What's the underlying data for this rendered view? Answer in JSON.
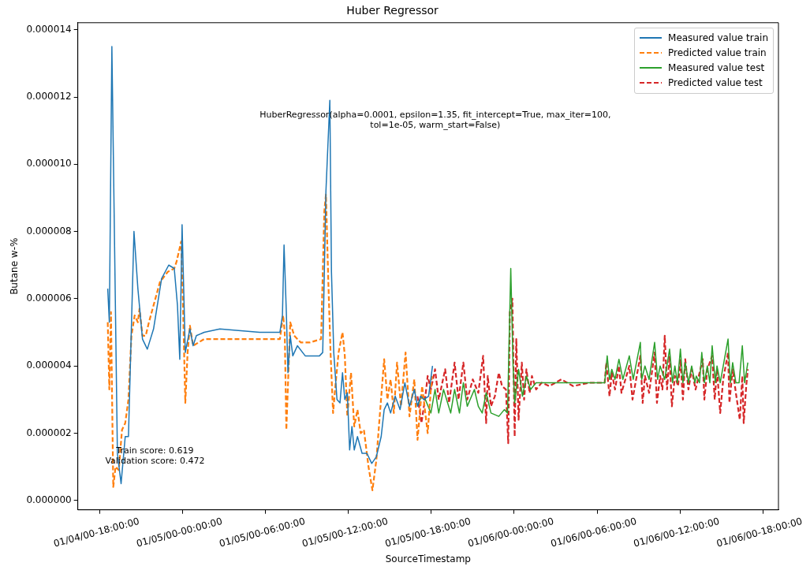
{
  "chart_data": {
    "type": "line",
    "title": "Huber Regressor",
    "xlabel": "SourceTimestamp",
    "ylabel": "Butane w-%",
    "xlim": [
      "2000-01-04T16:24",
      "2000-01-06T19:08"
    ],
    "ylim": [
      -2.8e-07,
      1.421e-05
    ],
    "xticks": [
      {
        "value": "2000-01-04T18:00",
        "label": "01/04/00-18:00:00"
      },
      {
        "value": "2000-01-05T00:00",
        "label": "01/05/00-00:00:00"
      },
      {
        "value": "2000-01-05T06:00",
        "label": "01/05/00-06:00:00"
      },
      {
        "value": "2000-01-05T12:00",
        "label": "01/05/00-12:00:00"
      },
      {
        "value": "2000-01-05T18:00",
        "label": "01/05/00-18:00:00"
      },
      {
        "value": "2000-01-06T00:00",
        "label": "01/06/00-00:00:00"
      },
      {
        "value": "2000-01-06T06:00",
        "label": "01/06/00-06:00:00"
      },
      {
        "value": "2000-01-06T12:00",
        "label": "01/06/00-12:00:00"
      },
      {
        "value": "2000-01-06T18:00",
        "label": "01/06/00-18:00:00"
      }
    ],
    "yticks": [
      {
        "value": 0,
        "label": "0.000000"
      },
      {
        "value": 2e-06,
        "label": "0.000002"
      },
      {
        "value": 4e-06,
        "label": "0.000004"
      },
      {
        "value": 6e-06,
        "label": "0.000006"
      },
      {
        "value": 8e-06,
        "label": "0.000008"
      },
      {
        "value": 1e-05,
        "label": "0.000010"
      },
      {
        "value": 1.2e-05,
        "label": "0.000012"
      },
      {
        "value": 1.4e-05,
        "label": "0.000014"
      }
    ],
    "grid": false,
    "legend": "top right",
    "marker": "none",
    "annotations": [
      "HuberRegressor(alpha=0.0001, epsilon=1.35, fit_intercept=True, max_iter=100,\ntol=1e-05, warm_start=False)",
      "Train score: 0.619\nValidation score: 0.472"
    ],
    "series": [
      {
        "name": "Measured value train",
        "color": "#1f77b4",
        "line_style": "solid",
        "x": [
          "2000-01-04T18:34",
          "2000-01-04T18:41",
          "2000-01-04T18:52",
          "2000-01-04T19:16",
          "2000-01-04T19:32",
          "2000-01-04T19:50",
          "2000-01-04T20:04",
          "2000-01-04T20:28",
          "2000-01-04T20:45",
          "2000-01-04T21:05",
          "2000-01-04T21:26",
          "2000-01-04T21:53",
          "2000-01-04T22:28",
          "2000-01-04T22:59",
          "2000-01-04T23:23",
          "2000-01-04T23:37",
          "2000-01-04T23:47",
          "2000-01-04T23:57",
          "2000-01-05T00:11",
          "2000-01-05T00:31",
          "2000-01-05T00:45",
          "2000-01-05T00:59",
          "2000-01-05T01:33",
          "2000-01-05T02:41",
          "2000-01-05T05:34",
          "2000-01-05T07:02",
          "2000-01-05T07:13",
          "2000-01-05T07:20",
          "2000-01-05T07:30",
          "2000-01-05T07:37",
          "2000-01-05T07:47",
          "2000-01-05T07:58",
          "2000-01-05T08:18",
          "2000-01-05T08:52",
          "2000-01-05T09:54",
          "2000-01-05T10:08",
          "2000-01-05T10:22",
          "2000-01-05T10:39",
          "2000-01-05T10:46",
          "2000-01-05T10:56",
          "2000-01-05T11:10",
          "2000-01-05T11:23",
          "2000-01-05T11:34",
          "2000-01-05T11:44",
          "2000-01-05T11:55",
          "2000-01-05T12:05",
          "2000-01-05T12:15",
          "2000-01-05T12:25",
          "2000-01-05T12:39",
          "2000-01-05T12:59",
          "2000-01-05T13:20",
          "2000-01-05T13:41",
          "2000-01-05T14:01",
          "2000-01-05T14:22",
          "2000-01-05T14:35",
          "2000-01-05T14:49",
          "2000-01-05T15:03",
          "2000-01-05T15:23",
          "2000-01-05T15:44",
          "2000-01-05T16:05",
          "2000-01-05T16:25",
          "2000-01-05T16:46",
          "2000-01-05T17:00",
          "2000-01-05T17:13",
          "2000-01-05T17:27",
          "2000-01-05T17:48",
          "2000-01-05T18:05"
        ],
        "values": [
          6.3e-06,
          5.3e-06,
          1.35e-05,
          1.4e-06,
          5e-07,
          1.9e-06,
          1.9e-06,
          8e-06,
          6.3e-06,
          4.8e-06,
          4.5e-06,
          5.1e-06,
          6.6e-06,
          7e-06,
          6.9e-06,
          5.8e-06,
          4.2e-06,
          8.2e-06,
          4.4e-06,
          5.1e-06,
          4.6e-06,
          4.9e-06,
          5e-06,
          5.1e-06,
          5e-06,
          5e-06,
          5.5e-06,
          7.6e-06,
          5.6e-06,
          3.8e-06,
          4.9e-06,
          4.3e-06,
          4.6e-06,
          4.3e-06,
          4.3e-06,
          4.4e-06,
          9.2e-06,
          1.19e-05,
          6.8e-06,
          4.4e-06,
          3e-06,
          2.9e-06,
          3.8e-06,
          3e-06,
          3.2e-06,
          1.5e-06,
          2.2e-06,
          1.5e-06,
          1.9e-06,
          1.4e-06,
          1.4e-06,
          1.1e-06,
          1.3e-06,
          1.9e-06,
          2.7e-06,
          2.9e-06,
          2.6e-06,
          3.1e-06,
          2.7e-06,
          3.5e-06,
          2.8e-06,
          3.3e-06,
          2.8e-06,
          3.1e-06,
          3e-06,
          3.1e-06,
          4e-06
        ]
      },
      {
        "name": "Predicted value train",
        "color": "#ff7f0e",
        "line_style": "dashed",
        "x": [
          "2000-01-04T18:34",
          "2000-01-04T18:41",
          "2000-01-04T18:48",
          "2000-01-04T18:58",
          "2000-01-04T19:08",
          "2000-01-04T19:22",
          "2000-01-04T19:36",
          "2000-01-04T19:50",
          "2000-01-04T20:04",
          "2000-01-04T20:17",
          "2000-01-04T20:31",
          "2000-01-04T20:45",
          "2000-01-04T20:52",
          "2000-01-04T21:05",
          "2000-01-04T21:19",
          "2000-01-04T21:33",
          "2000-01-04T21:53",
          "2000-01-04T22:21",
          "2000-01-04T22:55",
          "2000-01-04T23:23",
          "2000-01-04T23:33",
          "2000-01-04T23:43",
          "2000-01-04T23:53",
          "2000-01-05T00:01",
          "2000-01-05T00:11",
          "2000-01-05T00:21",
          "2000-01-05T00:31",
          "2000-01-05T00:45",
          "2000-01-05T01:33",
          "2000-01-05T03:50",
          "2000-01-05T05:34",
          "2000-01-05T07:02",
          "2000-01-05T07:16",
          "2000-01-05T07:23",
          "2000-01-05T07:30",
          "2000-01-05T07:40",
          "2000-01-05T07:47",
          "2000-01-05T08:04",
          "2000-01-05T08:32",
          "2000-01-05T09:13",
          "2000-01-05T10:01",
          "2000-01-05T10:15",
          "2000-01-05T10:22",
          "2000-01-05T10:32",
          "2000-01-05T10:42",
          "2000-01-05T10:53",
          "2000-01-05T11:03",
          "2000-01-05T11:17",
          "2000-01-05T11:34",
          "2000-01-05T11:44",
          "2000-01-05T11:55",
          "2000-01-05T12:11",
          "2000-01-05T12:25",
          "2000-01-05T12:39",
          "2000-01-05T12:53",
          "2000-01-05T13:07",
          "2000-01-05T13:27",
          "2000-01-05T13:44",
          "2000-01-05T14:01",
          "2000-01-05T14:19",
          "2000-01-05T14:35",
          "2000-01-05T14:49",
          "2000-01-05T15:03",
          "2000-01-05T15:17",
          "2000-01-05T15:31",
          "2000-01-05T15:48",
          "2000-01-05T16:08",
          "2000-01-05T16:25",
          "2000-01-05T16:46",
          "2000-01-05T17:00",
          "2000-01-05T17:20",
          "2000-01-05T17:44",
          "2000-01-05T18:02"
        ],
        "values": [
          5.3e-06,
          3.3e-06,
          5.6e-06,
          4e-07,
          1e-06,
          9e-07,
          2.1e-06,
          2.3e-06,
          3e-06,
          4.9e-06,
          5.5e-06,
          5.3e-06,
          5.7e-06,
          4.9e-06,
          4.9e-06,
          5.3e-06,
          5.8e-06,
          6.5e-06,
          6.8e-06,
          6.9e-06,
          7.1e-06,
          7.4e-06,
          7.7e-06,
          5.8e-06,
          2.9e-06,
          4.4e-06,
          5.2e-06,
          4.6e-06,
          4.8e-06,
          4.8e-06,
          4.8e-06,
          4.8e-06,
          5.5e-06,
          5e-06,
          2.1e-06,
          4e-06,
          5.3e-06,
          4.9e-06,
          4.7e-06,
          4.7e-06,
          4.8e-06,
          8.6e-06,
          9.1e-06,
          6.6e-06,
          4.4e-06,
          2.6e-06,
          3.4e-06,
          4.4e-06,
          5e-06,
          4.3e-06,
          2.5e-06,
          3.8e-06,
          2.2e-06,
          2.7e-06,
          2e-06,
          2.1e-06,
          1e-06,
          3e-07,
          1.2e-06,
          2.8e-06,
          4.2e-06,
          3e-06,
          3.6e-06,
          2.6e-06,
          4.1e-06,
          2.8e-06,
          4.4e-06,
          2.5e-06,
          3.6e-06,
          1.8e-06,
          3.4e-06,
          2e-06,
          3.7e-06
        ]
      },
      {
        "name": "Measured value test",
        "color": "#2ca02c",
        "line_style": "solid",
        "x": [
          "2000-01-05T17:00",
          "2000-01-05T17:17",
          "2000-01-05T17:34",
          "2000-01-05T17:58",
          "2000-01-05T18:16",
          "2000-01-05T18:32",
          "2000-01-05T18:53",
          "2000-01-05T19:24",
          "2000-01-05T19:41",
          "2000-01-05T20:02",
          "2000-01-05T20:19",
          "2000-01-05T20:36",
          "2000-01-05T21:07",
          "2000-01-05T21:24",
          "2000-01-05T21:41",
          "2000-01-05T21:58",
          "2000-01-05T22:19",
          "2000-01-05T22:53",
          "2000-01-05T23:17",
          "2000-01-05T23:31",
          "2000-01-05T23:38",
          "2000-01-05T23:45",
          "2000-01-05T23:55",
          "2000-01-06T00:02",
          "2000-01-06T00:19",
          "2000-01-06T00:36",
          "2000-01-06T00:53",
          "2000-01-06T01:11",
          "2000-01-06T01:35",
          "2000-01-06T02:09",
          "2000-01-06T04:02",
          "2000-01-06T06:33",
          "2000-01-06T06:44",
          "2000-01-06T06:54",
          "2000-01-06T07:04",
          "2000-01-06T07:18",
          "2000-01-06T07:35",
          "2000-01-06T07:52",
          "2000-01-06T08:20",
          "2000-01-06T08:37",
          "2000-01-06T09:08",
          "2000-01-06T09:14",
          "2000-01-06T09:28",
          "2000-01-06T09:46",
          "2000-01-06T10:10",
          "2000-01-06T10:23",
          "2000-01-06T10:34",
          "2000-01-06T10:54",
          "2000-01-06T11:15",
          "2000-01-06T11:28",
          "2000-01-06T11:38",
          "2000-01-06T11:49",
          "2000-01-06T12:02",
          "2000-01-06T12:13",
          "2000-01-06T12:23",
          "2000-01-06T12:37",
          "2000-01-06T12:51",
          "2000-01-06T13:05",
          "2000-01-06T13:11",
          "2000-01-06T13:25",
          "2000-01-06T13:35",
          "2000-01-06T13:46",
          "2000-01-06T13:59",
          "2000-01-06T14:10",
          "2000-01-06T14:20",
          "2000-01-06T14:34",
          "2000-01-06T14:41",
          "2000-01-06T14:55",
          "2000-01-06T15:29",
          "2000-01-06T15:39",
          "2000-01-06T15:49",
          "2000-01-06T16:03",
          "2000-01-06T16:17",
          "2000-01-06T16:31",
          "2000-01-06T16:41",
          "2000-01-06T16:55"
        ],
        "values": [
          2.8e-06,
          3.1e-06,
          3e-06,
          2.6e-06,
          3.3e-06,
          2.6e-06,
          3.3e-06,
          2.6e-06,
          3.3e-06,
          2.6e-06,
          3.5e-06,
          2.8e-06,
          3.3e-06,
          2.8e-06,
          2.6e-06,
          3.2e-06,
          2.6e-06,
          2.5e-06,
          2.7e-06,
          2.6e-06,
          4.8e-06,
          6.9e-06,
          4e-06,
          2.9e-06,
          3.9e-06,
          3.1e-06,
          3.7e-06,
          3.3e-06,
          3.5e-06,
          3.5e-06,
          3.5e-06,
          3.5e-06,
          4.3e-06,
          3.6e-06,
          3.9e-06,
          3.6e-06,
          4.2e-06,
          3.6e-06,
          4.3e-06,
          3.6e-06,
          4.7e-06,
          3.6e-06,
          4e-06,
          3.6e-06,
          4.7e-06,
          3.6e-06,
          4e-06,
          3.6e-06,
          4.5e-06,
          3.5e-06,
          4e-06,
          3.5e-06,
          4.5e-06,
          3.5e-06,
          4.1e-06,
          3.5e-06,
          4e-06,
          3.5e-06,
          3.7e-06,
          3.5e-06,
          4.4e-06,
          3.5e-06,
          4e-06,
          3.5e-06,
          4.6e-06,
          3.5e-06,
          4e-06,
          3.5e-06,
          4.8e-06,
          3.5e-06,
          4.1e-06,
          3.5e-06,
          3.5e-06,
          4.6e-06,
          3.5e-06,
          4.1e-06
        ]
      },
      {
        "name": "Predicted value test",
        "color": "#d62728",
        "line_style": "dashed",
        "x": [
          "2000-01-05T17:00",
          "2000-01-05T17:17",
          "2000-01-05T17:34",
          "2000-01-05T17:44",
          "2000-01-05T17:58",
          "2000-01-05T18:16",
          "2000-01-05T18:32",
          "2000-01-05T19:00",
          "2000-01-05T19:17",
          "2000-01-05T19:41",
          "2000-01-05T19:58",
          "2000-01-05T20:19",
          "2000-01-05T20:36",
          "2000-01-05T21:00",
          "2000-01-05T21:24",
          "2000-01-05T21:45",
          "2000-01-05T21:58",
          "2000-01-05T22:05",
          "2000-01-05T22:19",
          "2000-01-05T22:36",
          "2000-01-05T22:53",
          "2000-01-05T23:07",
          "2000-01-05T23:24",
          "2000-01-05T23:34",
          "2000-01-05T23:41",
          "2000-01-05T23:52",
          "2000-01-06T00:02",
          "2000-01-06T00:09",
          "2000-01-06T00:19",
          "2000-01-06T00:33",
          "2000-01-06T00:43",
          "2000-01-06T00:53",
          "2000-01-06T01:07",
          "2000-01-06T01:17",
          "2000-01-06T01:35",
          "2000-01-06T01:59",
          "2000-01-06T02:33",
          "2000-01-06T03:25",
          "2000-01-06T04:16",
          "2000-01-06T05:25",
          "2000-01-06T06:33",
          "2000-01-06T06:40",
          "2000-01-06T06:54",
          "2000-01-06T07:04",
          "2000-01-06T07:18",
          "2000-01-06T07:35",
          "2000-01-06T07:46",
          "2000-01-06T08:20",
          "2000-01-06T08:34",
          "2000-01-06T09:08",
          "2000-01-06T09:18",
          "2000-01-06T09:28",
          "2000-01-06T09:46",
          "2000-01-06T10:10",
          "2000-01-06T10:20",
          "2000-01-06T10:34",
          "2000-01-06T10:44",
          "2000-01-06T10:54",
          "2000-01-06T11:04",
          "2000-01-06T11:15",
          "2000-01-06T11:25",
          "2000-01-06T11:38",
          "2000-01-06T11:52",
          "2000-01-06T12:02",
          "2000-01-06T12:13",
          "2000-01-06T12:23",
          "2000-01-06T12:37",
          "2000-01-06T12:51",
          "2000-01-06T13:08",
          "2000-01-06T13:39",
          "2000-01-06T13:46",
          "2000-01-06T13:59",
          "2000-01-06T14:20",
          "2000-01-06T14:31",
          "2000-01-06T14:41",
          "2000-01-06T14:55",
          "2000-01-06T15:08",
          "2000-01-06T15:29",
          "2000-01-06T15:35",
          "2000-01-06T15:49",
          "2000-01-06T16:03",
          "2000-01-06T16:20",
          "2000-01-06T16:31",
          "2000-01-06T16:37",
          "2000-01-06T16:48",
          "2000-01-06T16:55"
        ],
        "values": [
          3.1e-06,
          2.3e-06,
          3.1e-06,
          3.7e-06,
          3.3e-06,
          3.9e-06,
          3e-06,
          3.9e-06,
          2.9e-06,
          4.1e-06,
          3e-06,
          4.1e-06,
          3e-06,
          3.6e-06,
          3.2e-06,
          4.3e-06,
          2.3e-06,
          3.7e-06,
          2.8e-06,
          3.1e-06,
          3.8e-06,
          3.4e-06,
          3.3e-06,
          1.7e-06,
          5.6e-06,
          6e-06,
          1.9e-06,
          4.8e-06,
          2.4e-06,
          4.1e-06,
          3e-06,
          3.9e-06,
          3.2e-06,
          3.7e-06,
          3.3e-06,
          3.5e-06,
          3.4e-06,
          3.6e-06,
          3.4e-06,
          3.5e-06,
          3.5e-06,
          4.1e-06,
          3.1e-06,
          3.8e-06,
          3.3e-06,
          4e-06,
          3.2e-06,
          4e-06,
          3e-06,
          4.3e-06,
          2.9e-06,
          3.7e-06,
          3.2e-06,
          4.4e-06,
          2.9e-06,
          3.7e-06,
          3.3e-06,
          4.9e-06,
          3.3e-06,
          4.3e-06,
          2.8e-06,
          3.7e-06,
          3.4e-06,
          4.2e-06,
          3e-06,
          4.2e-06,
          3.3e-06,
          3.9e-06,
          3.3e-06,
          4.2e-06,
          3e-06,
          3.9e-06,
          4.3e-06,
          3e-06,
          3.9e-06,
          2.6e-06,
          3.6e-06,
          4.4e-06,
          2.9e-06,
          3.9e-06,
          3.2e-06,
          2.4e-06,
          3.7e-06,
          2.3e-06,
          3.4e-06,
          3.9e-06
        ]
      }
    ]
  }
}
